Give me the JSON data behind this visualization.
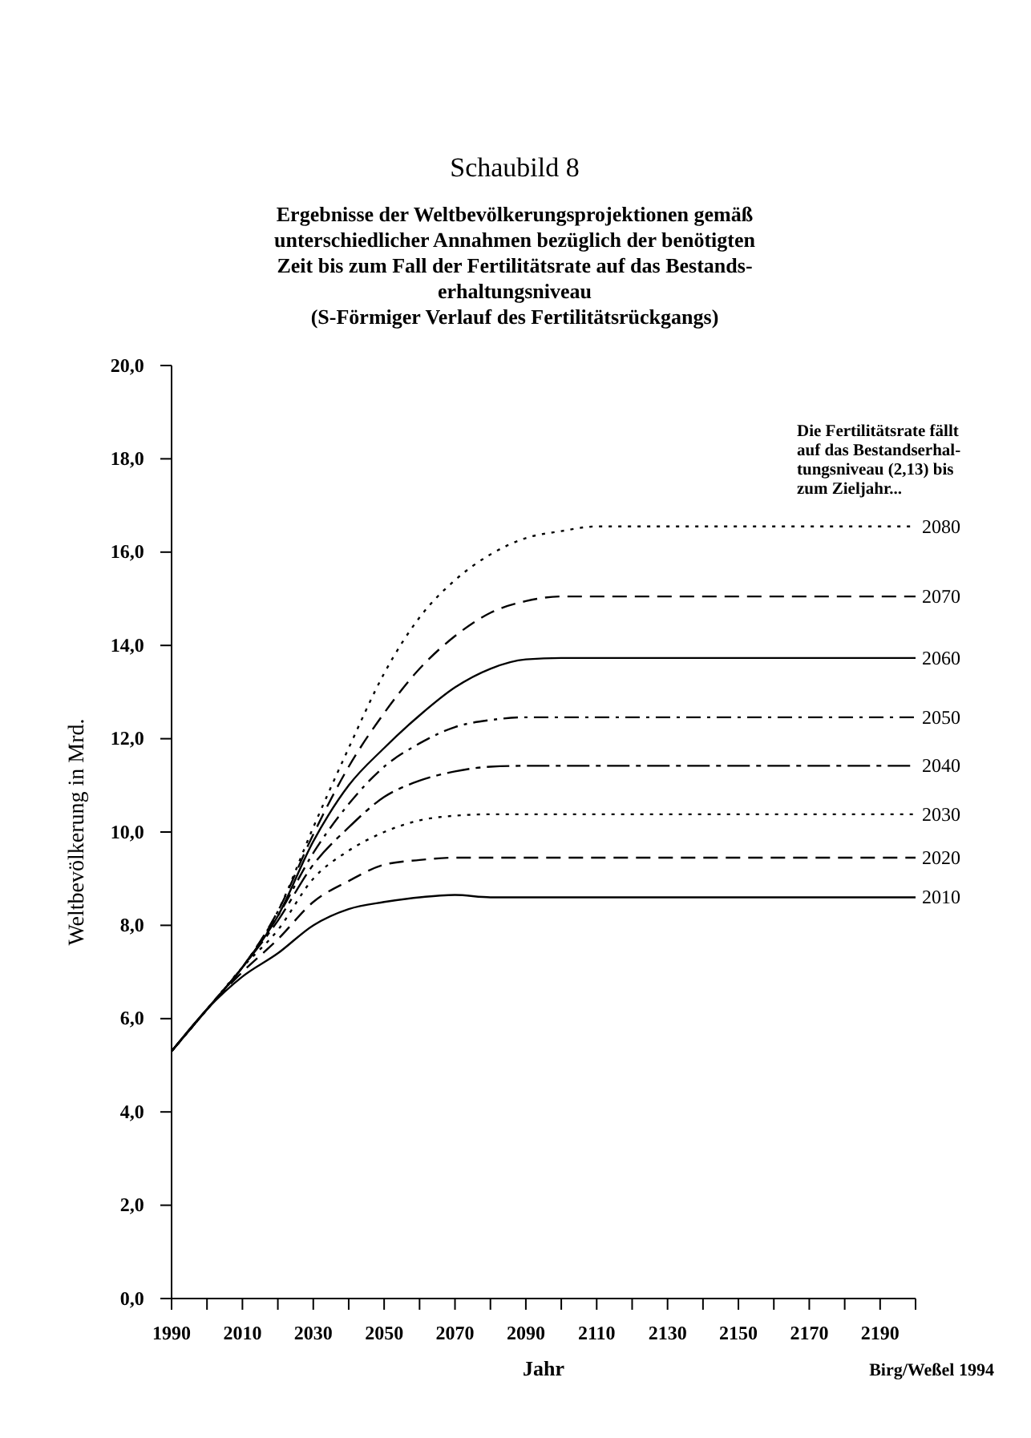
{
  "chart_data": {
    "type": "line",
    "title": "Schaubild 8",
    "subtitle": "Ergebnisse der Weltbevölkerungsprojektionen gemäß\nunterschiedlicher Annahmen bezüglich der benötigten\nZeit bis zum Fall der Fertilitätsrate auf das Bestands-\nerhaltungsniveau\n(S-Förmiger Verlauf des Fertilitätsrückgangs)",
    "xlabel": "Jahr",
    "ylabel": "Weltbevölkerung in Mrd.",
    "annotations": [
      "Die Fertilitätsrate fällt\nauf das Bestandserhal-\ntungsniveau (2,13) bis\nzum Zieljahr...",
      "Birg/Weßel 1994"
    ],
    "x": [
      1990,
      2000,
      2010,
      2020,
      2030,
      2040,
      2050,
      2060,
      2070,
      2080,
      2090,
      2100,
      2110,
      2120,
      2140,
      2200
    ],
    "series": [
      {
        "name": "2080",
        "color": "#000000",
        "line_style": "dotted",
        "values": [
          5.3,
          6.2,
          7.1,
          8.3,
          10.1,
          11.8,
          13.4,
          14.6,
          15.4,
          15.95,
          16.3,
          16.45,
          16.55,
          16.55,
          16.55,
          16.55
        ]
      },
      {
        "name": "2070",
        "color": "#000000",
        "line_style": "dashed",
        "values": [
          5.3,
          6.2,
          7.1,
          8.3,
          9.95,
          11.4,
          12.55,
          13.5,
          14.2,
          14.7,
          14.95,
          15.05,
          15.05,
          15.05,
          15.05,
          15.05
        ]
      },
      {
        "name": "2060",
        "color": "#000000",
        "line_style": "solid",
        "values": [
          5.3,
          6.2,
          7.1,
          8.2,
          9.8,
          11.0,
          11.8,
          12.5,
          13.1,
          13.5,
          13.7,
          13.73,
          13.73,
          13.73,
          13.73,
          13.73
        ]
      },
      {
        "name": "2050",
        "color": "#000000",
        "line_style": "dashdot",
        "values": [
          5.3,
          6.2,
          7.1,
          8.2,
          9.55,
          10.6,
          11.4,
          11.9,
          12.25,
          12.4,
          12.46,
          12.46,
          12.46,
          12.46,
          12.46,
          12.46
        ]
      },
      {
        "name": "2040",
        "color": "#000000",
        "line_style": "longdashdot",
        "values": [
          5.3,
          6.2,
          7.1,
          8.1,
          9.3,
          10.1,
          10.75,
          11.1,
          11.3,
          11.4,
          11.42,
          11.42,
          11.42,
          11.42,
          11.42,
          11.42
        ]
      },
      {
        "name": "2030",
        "color": "#000000",
        "line_style": "dotted",
        "values": [
          5.3,
          6.2,
          7.1,
          7.9,
          9.0,
          9.6,
          10.0,
          10.25,
          10.35,
          10.38,
          10.38,
          10.38,
          10.38,
          10.38,
          10.38,
          10.38
        ]
      },
      {
        "name": "2020",
        "color": "#000000",
        "line_style": "dashed",
        "values": [
          5.3,
          6.2,
          7.0,
          7.7,
          8.5,
          8.95,
          9.3,
          9.4,
          9.45,
          9.45,
          9.45,
          9.45,
          9.45,
          9.45,
          9.45,
          9.45
        ]
      },
      {
        "name": "2010",
        "color": "#000000",
        "line_style": "solid",
        "values": [
          5.3,
          6.2,
          6.9,
          7.4,
          8.0,
          8.35,
          8.5,
          8.6,
          8.65,
          8.6,
          8.6,
          8.6,
          8.6,
          8.6,
          8.6,
          8.6
        ]
      }
    ],
    "xlim": [
      1990,
      2200
    ],
    "xticks": [
      1990,
      {
        "value": 2000,
        "label": null
      },
      2010,
      {
        "value": 2020,
        "label": null
      },
      2030,
      {
        "value": 2040,
        "label": null
      },
      2050,
      {
        "value": 2060,
        "label": null
      },
      2070,
      {
        "value": 2080,
        "label": null
      },
      2090,
      {
        "value": 2100,
        "label": null
      },
      2110,
      {
        "value": 2120,
        "label": null
      },
      2130,
      {
        "value": 2140,
        "label": null
      },
      2150,
      {
        "value": 2160,
        "label": null
      },
      2170,
      {
        "value": 2180,
        "label": null
      },
      2190,
      {
        "value": 2200,
        "label": null
      }
    ],
    "ylim": [
      0,
      20
    ],
    "yticks": [
      {
        "value": 0,
        "label": "0,0"
      },
      {
        "value": 2,
        "label": "2,0"
      },
      {
        "value": 4,
        "label": "4,0"
      },
      {
        "value": 6,
        "label": "6,0"
      },
      {
        "value": 8,
        "label": "8,0"
      },
      {
        "value": 10,
        "label": "10,0"
      },
      {
        "value": 12,
        "label": "12,0"
      },
      {
        "value": 14,
        "label": "14,0"
      },
      {
        "value": 16,
        "label": "16,0"
      },
      {
        "value": 18,
        "label": "18,0"
      },
      {
        "value": 20,
        "label": "20,0"
      }
    ],
    "grid": false,
    "legend": false
  }
}
